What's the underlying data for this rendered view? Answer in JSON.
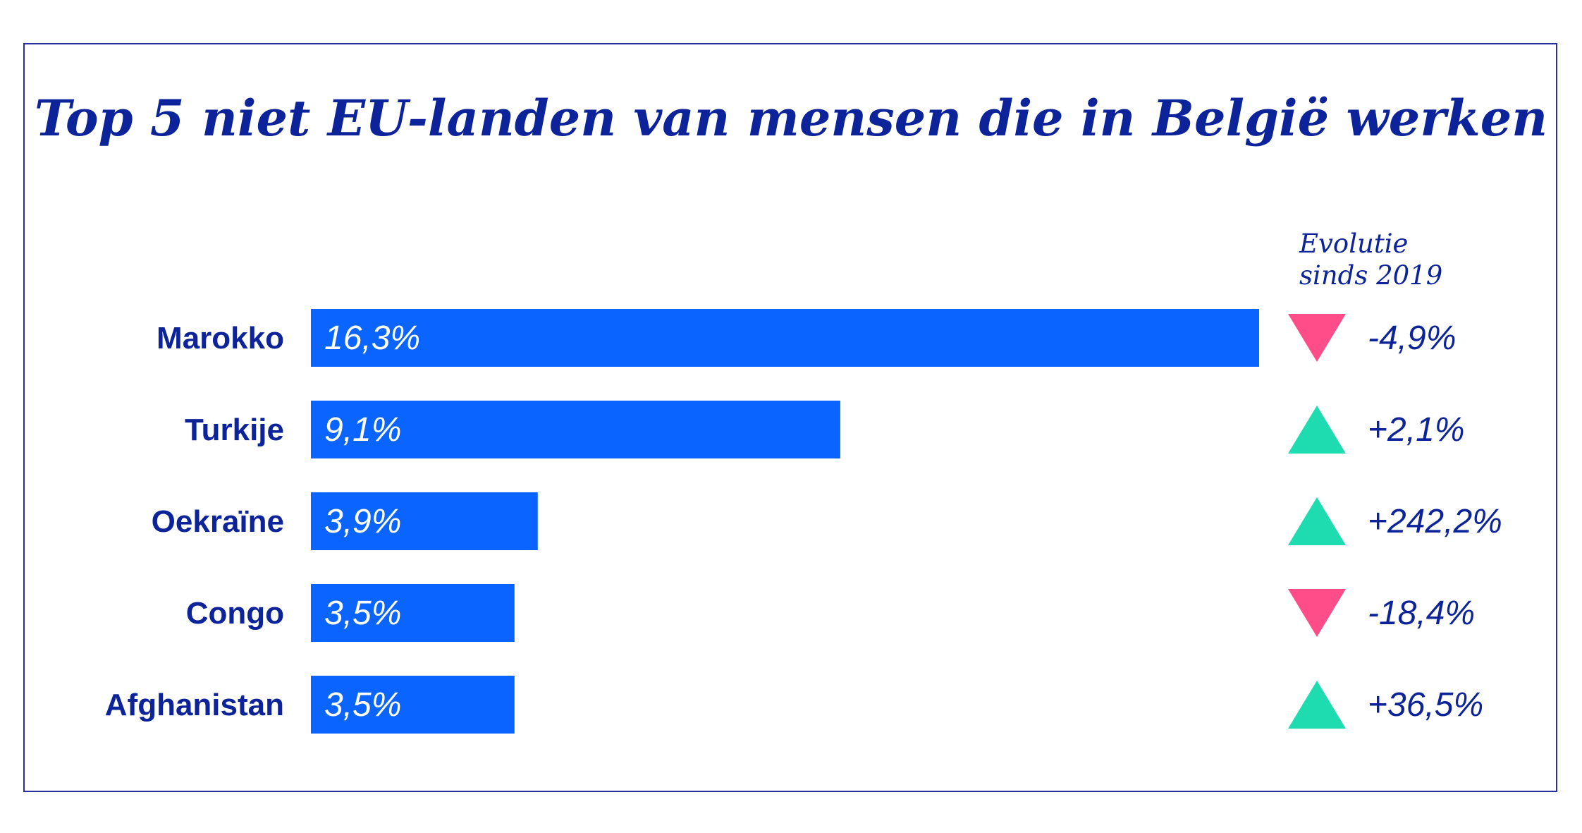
{
  "chart_data": {
    "type": "bar",
    "orientation": "horizontal",
    "title": "Top 5 niet EU-landen van mensen die in België werken",
    "categories": [
      "Marokko",
      "Turkije",
      "Oekraïne",
      "Congo",
      "Afghanistan"
    ],
    "values": [
      16.3,
      9.1,
      3.9,
      3.5,
      3.5
    ],
    "value_labels": [
      "16,3%",
      "9,1%",
      "3,9%",
      "3,5%",
      "3,5%"
    ],
    "evolution_header": [
      "Evolutie",
      "sinds 2019"
    ],
    "evolution": [
      {
        "value": -4.9,
        "label": "-4,9%",
        "direction": "down"
      },
      {
        "value": 2.1,
        "label": "+2,1%",
        "direction": "up"
      },
      {
        "value": 242.2,
        "label": "+242,2%",
        "direction": "up"
      },
      {
        "value": -18.4,
        "label": "-18,4%",
        "direction": "down"
      },
      {
        "value": 36.5,
        "label": "+36,5%",
        "direction": "up"
      }
    ],
    "grid": false,
    "legend": "none"
  },
  "colors": {
    "bar": "#0a64ff",
    "text": "#0c2399",
    "up": "#1fdcb0",
    "down": "#ff4d8a",
    "frame": "#2a2f9e"
  }
}
